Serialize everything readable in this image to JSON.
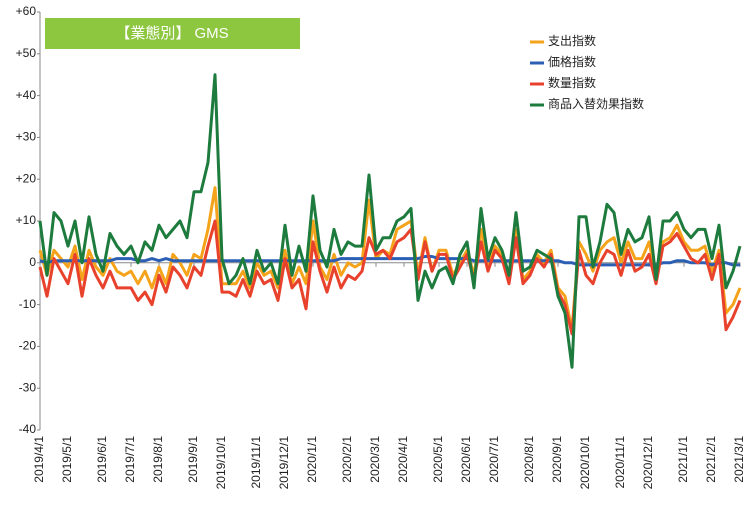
{
  "chart_data": {
    "type": "line",
    "title": "【業態別】 GMS",
    "categories": [
      "2019/4/1",
      null,
      null,
      null,
      "2019/5/1",
      null,
      null,
      null,
      null,
      "2019/6/1",
      null,
      null,
      null,
      "2019/7/1",
      null,
      null,
      null,
      "2019/8/1",
      null,
      null,
      null,
      null,
      "2019/9/1",
      null,
      null,
      null,
      "2019/10/1",
      null,
      null,
      null,
      null,
      "2019/11/1",
      null,
      null,
      null,
      "2019/12/1",
      null,
      null,
      null,
      "2020/1/1",
      null,
      null,
      null,
      null,
      "2020/2/1",
      null,
      null,
      null,
      "2020/3/1",
      null,
      null,
      null,
      "2020/4/1",
      null,
      null,
      null,
      null,
      "2020/5/1",
      null,
      null,
      null,
      "2020/6/1",
      null,
      null,
      null,
      "2020/7/1",
      null,
      null,
      null,
      null,
      "2020/8/1",
      null,
      null,
      null,
      "2020/9/1",
      null,
      null,
      null,
      "2020/10/1",
      null,
      null,
      null,
      null,
      "2020/11/1",
      null,
      null,
      null,
      "2020/12/1",
      null,
      null,
      null,
      null,
      "2021/1/1",
      null,
      null,
      null,
      "2021/2/1",
      null,
      null,
      null,
      "2021/3/1"
    ],
    "series": [
      {
        "name": "支出指数",
        "color": "#f5a31a",
        "values": [
          3,
          -3,
          3,
          1,
          -1,
          4,
          -4,
          3,
          -1,
          -3,
          1,
          -2,
          -3,
          -2,
          -5,
          -2,
          -6,
          -1,
          -5,
          2,
          0,
          -3,
          2,
          1,
          8,
          18,
          -5,
          -5,
          -5,
          -2,
          -6,
          0,
          -3,
          -2,
          -6,
          3,
          -5,
          -1,
          -5,
          10,
          -1,
          -4,
          2,
          -3,
          0,
          -1,
          0,
          15,
          1,
          3,
          2,
          8,
          9,
          10,
          -3,
          6,
          -2,
          3,
          3,
          -3,
          0,
          3,
          -3,
          8,
          -1,
          4,
          2,
          -3,
          8,
          -4,
          -2,
          2,
          0,
          3,
          -6,
          -8,
          -16,
          5,
          2,
          -2,
          3,
          5,
          6,
          0,
          5,
          1,
          1,
          5,
          -3,
          5,
          6,
          9,
          5,
          3,
          3,
          4,
          -2,
          3,
          -12,
          -10,
          -6
        ]
      },
      {
        "name": "価格指数",
        "color": "#2b5fb4",
        "values": [
          0.5,
          0,
          0.5,
          0.5,
          0.5,
          0.5,
          0.5,
          0.5,
          0.5,
          0.5,
          0.5,
          1,
          1,
          1,
          0.5,
          0.5,
          1,
          0.5,
          1,
          0.5,
          0.5,
          0.5,
          0.5,
          0.5,
          0.5,
          0.5,
          0.5,
          0.5,
          0.5,
          0.5,
          0.5,
          0.5,
          0.5,
          0.5,
          0.5,
          0.5,
          0.5,
          0.5,
          0.5,
          0.5,
          0.5,
          0.5,
          0.5,
          1,
          1,
          1,
          1,
          1,
          1,
          1,
          1,
          1,
          1,
          1,
          1,
          1.5,
          1.5,
          1,
          1,
          1,
          1,
          1,
          0.5,
          0.5,
          0.5,
          0.5,
          0.5,
          0.5,
          0.5,
          0.5,
          0.5,
          0.5,
          0.5,
          0.5,
          0.5,
          0,
          0,
          -0.5,
          -0.5,
          -0.5,
          -0.5,
          -0.5,
          -0.5,
          -0.5,
          -0.5,
          -0.5,
          -0.5,
          -0.5,
          -0.5,
          0,
          0,
          0.5,
          0.5,
          0,
          0,
          0,
          -0.5,
          0,
          0,
          -0.5,
          -0.5
        ]
      },
      {
        "name": "数量指数",
        "color": "#e8412c",
        "values": [
          -1,
          -8,
          1,
          -2,
          -5,
          2,
          -8,
          1,
          -3,
          -6,
          -2,
          -6,
          -6,
          -6,
          -9,
          -7,
          -10,
          -3,
          -7,
          -1,
          -3,
          -6,
          -1,
          -3,
          4,
          10,
          -7,
          -7,
          -8,
          -4,
          -8,
          -2,
          -5,
          -4,
          -9,
          1,
          -6,
          -4,
          -11,
          5,
          -2,
          -7,
          -1,
          -6,
          -3,
          -4,
          -2,
          6,
          2,
          3,
          1,
          5,
          6,
          8,
          -4,
          5,
          -2,
          2,
          2,
          -4,
          -1,
          2,
          -4,
          5,
          -2,
          3,
          1,
          -5,
          6,
          -5,
          -3,
          1,
          -1,
          2,
          -7,
          -10,
          -17,
          3,
          -3,
          -5,
          0,
          3,
          2,
          -3,
          3,
          -2,
          -1,
          2,
          -5,
          4,
          5,
          7,
          4,
          1,
          0,
          2,
          -4,
          2,
          -16,
          -13,
          -9
        ]
      },
      {
        "name": "商品入替効果指数",
        "color": "#1e7b3e",
        "values": [
          10,
          -3,
          12,
          10,
          4,
          10,
          0,
          11,
          2,
          -2,
          7,
          4,
          2,
          4,
          0,
          5,
          3,
          9,
          6,
          8,
          10,
          6,
          17,
          17,
          24,
          45,
          1,
          -5,
          -3,
          1,
          -5,
          3,
          -2,
          0,
          -5,
          9,
          -3,
          4,
          -2,
          16,
          3,
          -1,
          8,
          2,
          5,
          4,
          4,
          21,
          3,
          6,
          6,
          10,
          11,
          13,
          -9,
          -2,
          -6,
          -2,
          -1,
          -5,
          2,
          5,
          -6,
          13,
          1,
          6,
          3,
          -3,
          12,
          -2,
          -1,
          3,
          2,
          1,
          -8,
          -12,
          -25,
          11,
          11,
          -1,
          5,
          14,
          12,
          2,
          8,
          5,
          6,
          11,
          -4,
          10,
          10,
          12,
          8,
          6,
          8,
          8,
          1,
          9,
          -6,
          -2,
          4
        ]
      }
    ],
    "ylim": [
      -40,
      60
    ],
    "yticks": [
      {
        "value": 60,
        "label": "+60"
      },
      {
        "value": 50,
        "label": "+50"
      },
      {
        "value": 40,
        "label": "+40"
      },
      {
        "value": 30,
        "label": "+30"
      },
      {
        "value": 20,
        "label": "+20"
      },
      {
        "value": 10,
        "label": "+10"
      },
      0,
      -10,
      -20,
      -30,
      -40
    ],
    "legend": "upper right"
  }
}
